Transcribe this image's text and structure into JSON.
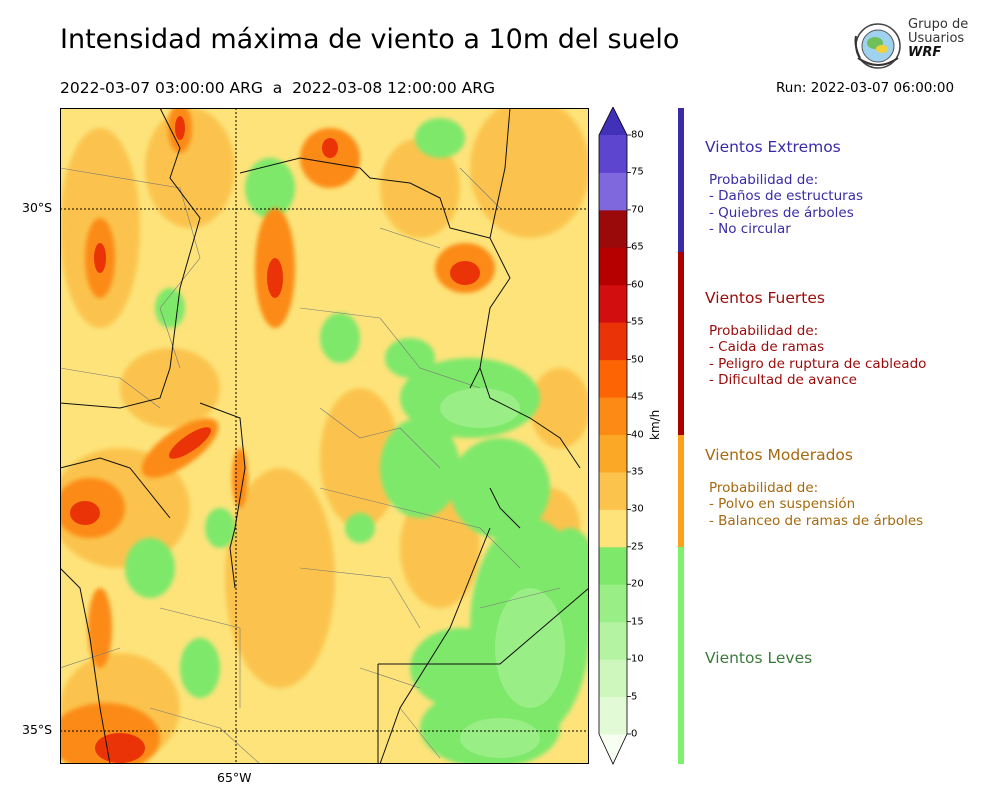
{
  "header": {
    "title": "Intensidad máxima de viento a 10m del suelo",
    "period": "2022-03-07 03:00:00 ARG  a  2022-03-08 12:00:00 ARG",
    "run": "Run: 2022-03-07 06:00:00"
  },
  "logo": {
    "line1": "Grupo de",
    "line2": "Usuarios",
    "line3": "WRF"
  },
  "map": {
    "lat_labels": [
      "30°S",
      "35°S"
    ],
    "lon_labels": [
      "65°W"
    ],
    "background_color": "#fde37a"
  },
  "colorbar": {
    "unit": "km/h",
    "ticks": [
      "0",
      "5",
      "10",
      "15",
      "20",
      "25",
      "30",
      "35",
      "40",
      "45",
      "50",
      "55",
      "60",
      "65",
      "70",
      "75",
      "80"
    ],
    "colors": [
      "#f6fff2",
      "#e2fbd6",
      "#cdf7bd",
      "#b4f3a1",
      "#99ee86",
      "#7ee86b",
      "#fde37a",
      "#fbc24c",
      "#fca827",
      "#fc8a14",
      "#fc6404",
      "#ea3408",
      "#d20e0e",
      "#b60000",
      "#9b0a0a",
      "#7f67dd",
      "#5e45cf",
      "#4130b8"
    ]
  },
  "categories": [
    {
      "title": "Vientos Extremos",
      "color": "#3a2aa8",
      "lines": [
        "Probabilidad de:",
        "- Daños de estructuras",
        "- Quiebres de árboles",
        "- No circular"
      ]
    },
    {
      "title": "Vientos Fuertes",
      "color": "#9b0a0a",
      "lines": [
        "Probabilidad de:",
        "- Caida de ramas",
        "- Peligro de ruptura de cableado",
        "- Dificultad de avance"
      ]
    },
    {
      "title": "Vientos Moderados",
      "color": "#a5690f",
      "lines": [
        "Probabilidad de:",
        "- Polvo en suspensión",
        "- Balanceo de ramas de árboles"
      ]
    },
    {
      "title": "Vientos Leves",
      "color": "#3b7a3b",
      "lines": []
    }
  ]
}
